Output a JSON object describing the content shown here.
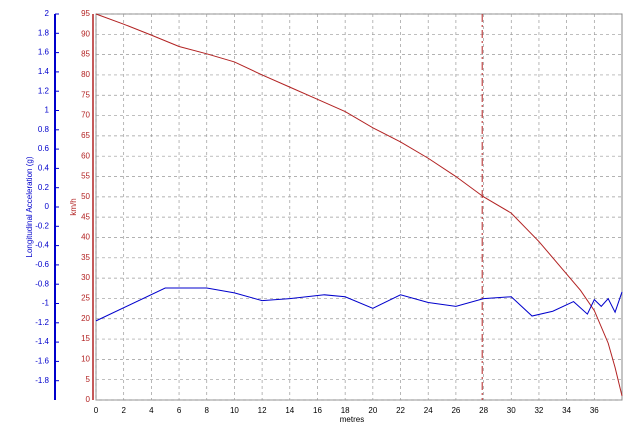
{
  "chart_data": {
    "type": "line",
    "x_label": "metres",
    "y_label": "Longitudinal Acceleration (g)",
    "y2_label": "km/h",
    "xlim": [
      0,
      38
    ],
    "xticks": [
      0,
      2,
      4,
      6,
      8,
      10,
      12,
      14,
      16,
      18,
      20,
      22,
      24,
      26,
      28,
      30,
      32,
      34,
      36
    ],
    "ylim": [
      -2,
      2
    ],
    "yticks": [
      2,
      1.8,
      1.6,
      1.4,
      1.2,
      1,
      0.8,
      0.6,
      0.4,
      0.2,
      0,
      -0.2,
      -0.4,
      -0.6,
      -0.8,
      -1,
      -1.2,
      -1.4,
      -1.6,
      -1.8
    ],
    "y2lim": [
      0,
      95
    ],
    "y2ticks": [
      0,
      5,
      10,
      15,
      20,
      25,
      30,
      35,
      40,
      45,
      50,
      55,
      60,
      65,
      70,
      75,
      80,
      85,
      90,
      95
    ],
    "grid": true,
    "cursor_x": 27.9,
    "series": [
      {
        "name": "Speed",
        "color": "#b22222",
        "axis": "y2",
        "x": [
          0,
          2,
          4,
          6,
          8,
          10,
          12,
          14,
          16,
          18,
          20,
          22,
          24,
          26,
          28,
          30,
          32,
          34,
          35,
          36,
          37,
          37.5,
          38
        ],
        "values": [
          95,
          92.5,
          89.8,
          87,
          85.2,
          83.2,
          80,
          77,
          74,
          71,
          67,
          63.5,
          59.5,
          55,
          50,
          46,
          39,
          31,
          27,
          22,
          14,
          8,
          1
        ]
      },
      {
        "name": "Longitudinal Acceleration",
        "color": "#0000cc",
        "axis": "y",
        "x": [
          0,
          5,
          8,
          10,
          12,
          14,
          16.5,
          18,
          20,
          22,
          24,
          26,
          28,
          30,
          31.5,
          33,
          34.5,
          35.5,
          36,
          36.5,
          37,
          37.5,
          38
        ],
        "values": [
          -1.18,
          -0.84,
          -0.84,
          -0.89,
          -0.97,
          -0.95,
          -0.91,
          -0.93,
          -1.05,
          -0.91,
          -0.99,
          -1.03,
          -0.95,
          -0.93,
          -1.13,
          -1.08,
          -0.98,
          -1.11,
          -0.96,
          -1.03,
          -0.95,
          -1.09,
          -0.88
        ]
      }
    ]
  }
}
